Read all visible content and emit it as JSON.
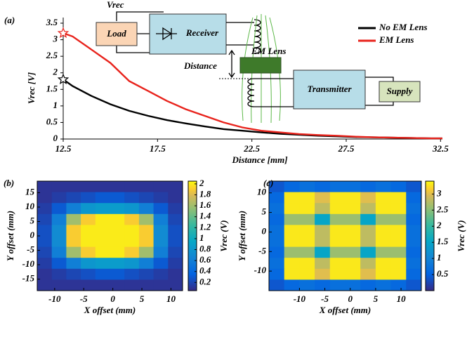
{
  "chart_data": [
    {
      "type": "line",
      "panel_label": "(a)",
      "x_label": "Distance [mm]",
      "y_label": "Vrec [V]",
      "x": [
        12.5,
        13,
        14,
        15,
        16,
        17,
        18,
        19,
        20,
        21,
        22,
        23,
        24,
        25,
        26,
        27,
        28,
        29,
        30,
        31,
        32,
        32.6
      ],
      "series": [
        {
          "name": "No EM Lens",
          "color": "#000000",
          "values": [
            1.8,
            1.6,
            1.3,
            1.05,
            0.85,
            0.7,
            0.57,
            0.47,
            0.38,
            0.3,
            0.25,
            0.2,
            0.16,
            0.13,
            0.1,
            0.08,
            0.06,
            0.05,
            0.04,
            0.03,
            0.02,
            0.02
          ]
        },
        {
          "name": "EM Lens",
          "color": "#e8231c",
          "values": [
            3.2,
            3.1,
            2.7,
            2.3,
            1.75,
            1.45,
            1.15,
            0.9,
            0.7,
            0.5,
            0.35,
            0.25,
            0.2,
            0.15,
            0.12,
            0.1,
            0.07,
            0.05,
            0.04,
            0.03,
            0.02,
            0.02
          ]
        }
      ],
      "xlim": [
        12.5,
        32.6
      ],
      "xticks": [
        12.5,
        17.5,
        22.5,
        27.5,
        32.5
      ],
      "ylim": [
        0,
        3.5
      ],
      "yticks": [
        0,
        0.5,
        1,
        1.5,
        2,
        2.5,
        3,
        3.5
      ],
      "legend": "upper right",
      "annotations": [
        "Vrec",
        "Load",
        "Receiver",
        "Distance",
        "EM Lens",
        "Transmitter",
        "Supply"
      ]
    },
    {
      "type": "heatmap",
      "panel_label": "(b)",
      "x_label": "X offset (mm)",
      "y_label": "Y offset (mm)",
      "colorbar_label": "Vrec (V)",
      "xlim": [
        -13,
        12
      ],
      "xticks": [
        -10,
        -5,
        0,
        5,
        10
      ],
      "ylim": [
        -19,
        19
      ],
      "yticks": [
        -15,
        -10,
        -5,
        0,
        5,
        10,
        15
      ],
      "clim": [
        0.05,
        2.05
      ],
      "cticks": [
        0.2,
        0.4,
        0.6,
        0.8,
        1,
        1.2,
        1.4,
        1.6,
        1.8,
        2
      ],
      "z": [
        [
          0.1,
          0.1,
          0.1,
          0.1,
          0.1,
          0.1,
          0.1,
          0.1,
          0.1,
          0.1
        ],
        [
          0.1,
          0.15,
          0.2,
          0.25,
          0.3,
          0.3,
          0.25,
          0.2,
          0.15,
          0.1
        ],
        [
          0.15,
          0.3,
          0.6,
          0.8,
          0.85,
          0.85,
          0.8,
          0.6,
          0.3,
          0.15
        ],
        [
          0.2,
          0.6,
          1.6,
          1.9,
          2.0,
          2.0,
          1.9,
          1.6,
          0.6,
          0.2
        ],
        [
          0.25,
          0.7,
          1.9,
          2.0,
          2.0,
          2.0,
          2.0,
          1.9,
          0.7,
          0.25
        ],
        [
          0.25,
          0.7,
          1.9,
          2.0,
          2.0,
          2.0,
          2.0,
          1.9,
          0.7,
          0.25
        ],
        [
          0.2,
          0.6,
          1.6,
          1.9,
          2.0,
          2.0,
          1.9,
          1.6,
          0.6,
          0.2
        ],
        [
          0.15,
          0.3,
          0.6,
          0.8,
          0.85,
          0.85,
          0.8,
          0.6,
          0.3,
          0.15
        ],
        [
          0.1,
          0.15,
          0.2,
          0.25,
          0.3,
          0.3,
          0.25,
          0.2,
          0.15,
          0.1
        ],
        [
          0.1,
          0.1,
          0.1,
          0.1,
          0.1,
          0.1,
          0.1,
          0.1,
          0.1,
          0.1
        ]
      ]
    },
    {
      "type": "heatmap",
      "panel_label": "(c)",
      "x_label": "X offset (mm)",
      "y_label": "Y offset (mm)",
      "colorbar_label": "Vrec (V)",
      "xlim": [
        -16,
        14
      ],
      "xticks": [
        -10,
        -5,
        0,
        5,
        10
      ],
      "ylim": [
        -15,
        13
      ],
      "yticks": [
        -10,
        -5,
        0,
        5,
        10
      ],
      "clim": [
        0,
        3.4
      ],
      "cticks": [
        0.5,
        1,
        1.5,
        2,
        2.5,
        3
      ],
      "z": [
        [
          0.4,
          0.6,
          0.7,
          0.6,
          0.7,
          0.7,
          0.6,
          0.7,
          0.6,
          0.4
        ],
        [
          0.6,
          3.3,
          3.3,
          3.0,
          3.3,
          3.3,
          3.0,
          3.3,
          3.3,
          0.6
        ],
        [
          0.7,
          3.3,
          3.3,
          2.8,
          3.3,
          3.3,
          2.8,
          3.3,
          3.3,
          0.7
        ],
        [
          0.6,
          2.6,
          2.6,
          1.5,
          2.6,
          2.6,
          1.5,
          2.6,
          2.6,
          0.6
        ],
        [
          0.7,
          3.3,
          3.3,
          2.8,
          3.3,
          3.3,
          2.8,
          3.3,
          3.3,
          0.7
        ],
        [
          0.7,
          3.3,
          3.3,
          2.8,
          3.3,
          3.3,
          2.8,
          3.3,
          3.3,
          0.7
        ],
        [
          0.6,
          2.6,
          2.6,
          1.5,
          2.6,
          2.6,
          1.5,
          2.6,
          2.6,
          0.6
        ],
        [
          0.7,
          3.3,
          3.3,
          2.8,
          3.3,
          3.3,
          2.8,
          3.3,
          3.3,
          0.7
        ],
        [
          0.6,
          3.3,
          3.3,
          3.0,
          3.3,
          3.3,
          3.0,
          3.3,
          3.3,
          0.6
        ],
        [
          0.4,
          0.6,
          0.7,
          0.6,
          0.7,
          0.7,
          0.6,
          0.7,
          0.6,
          0.4
        ]
      ]
    }
  ]
}
